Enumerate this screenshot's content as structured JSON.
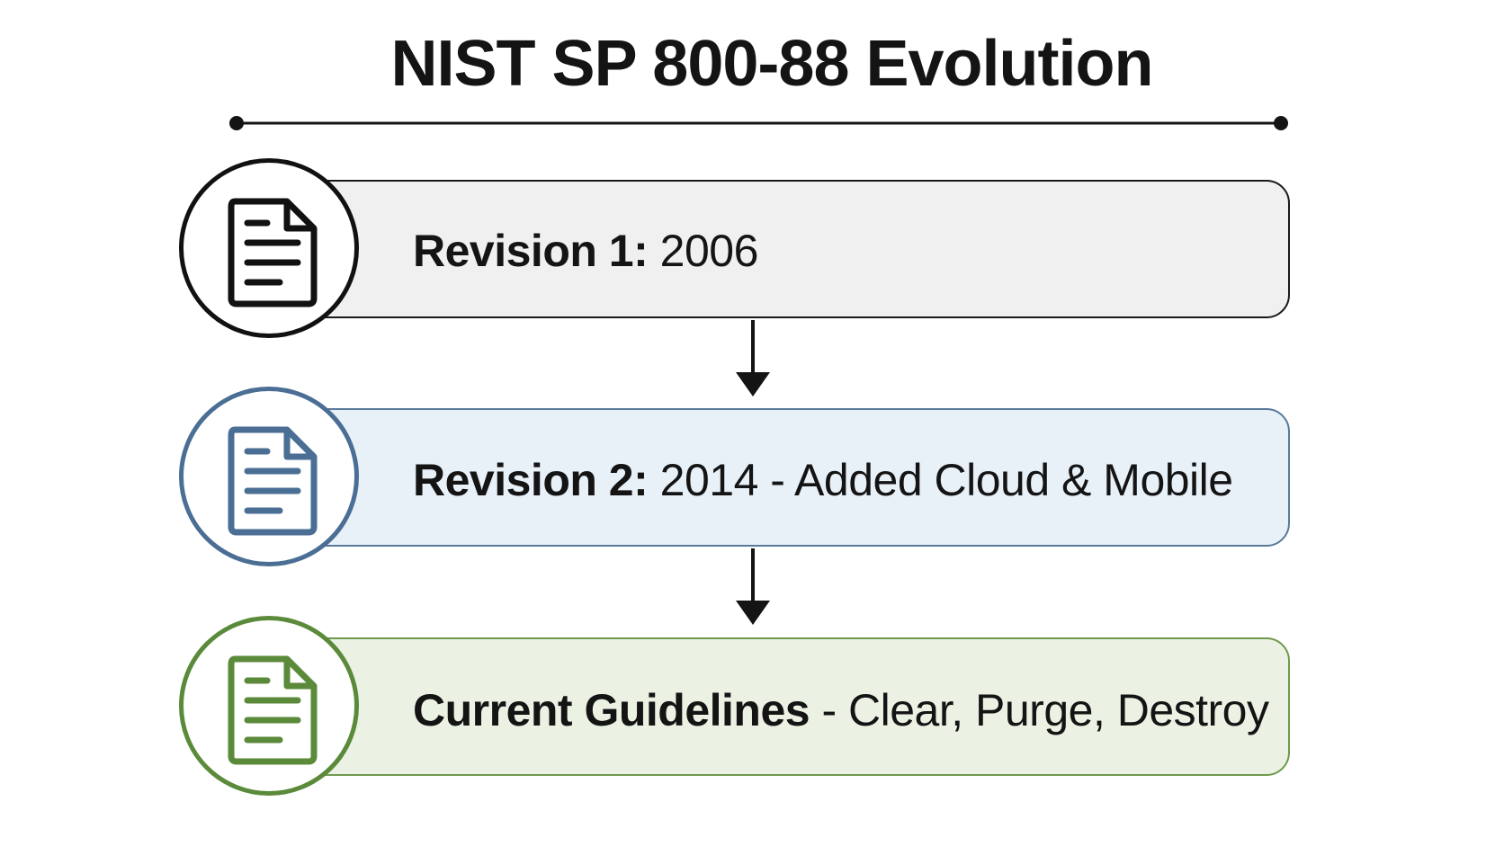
{
  "title": "NIST SP 800-88 Evolution",
  "stages": [
    {
      "label": "Revision 1:",
      "detail": " 2006",
      "icon": "document-icon",
      "color": "#111111"
    },
    {
      "label": "Revision 2:",
      "detail": " 2014 - Added Cloud & Mobile",
      "icon": "document-icon",
      "color": "#4a6e94"
    },
    {
      "label": "Current Guidelines",
      "detail": " - Clear, Purge, Destroy",
      "icon": "document-icon",
      "color": "#5a8a3a"
    }
  ]
}
